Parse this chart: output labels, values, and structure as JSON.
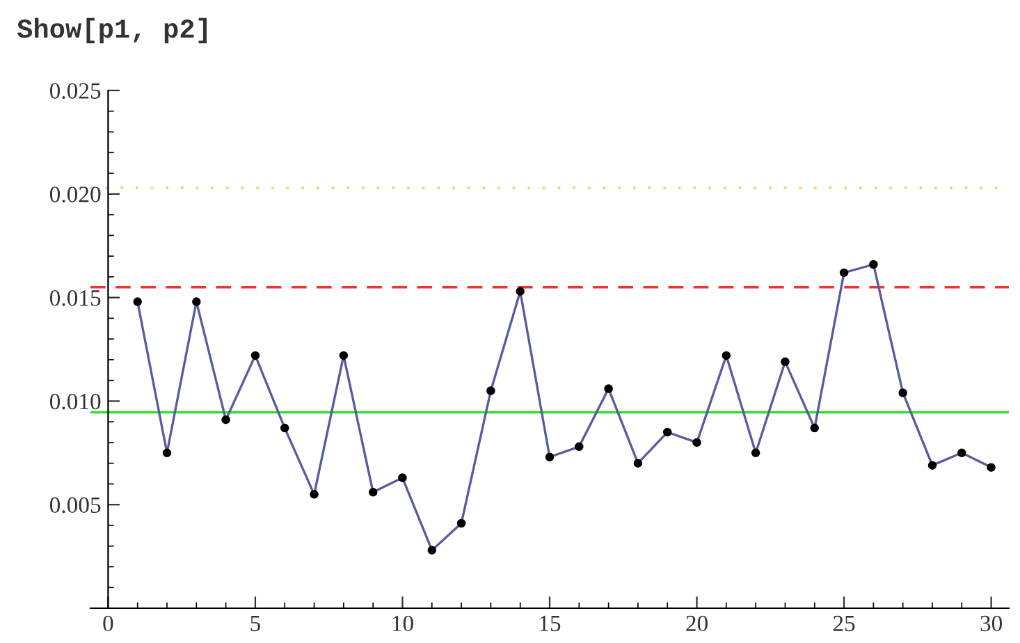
{
  "chart_data": {
    "type": "line",
    "title": "Show[p1, p2]",
    "x": [
      1,
      2,
      3,
      4,
      5,
      6,
      7,
      8,
      9,
      10,
      11,
      12,
      13,
      14,
      15,
      16,
      17,
      18,
      19,
      20,
      21,
      22,
      23,
      24,
      25,
      26,
      27,
      28,
      29,
      30
    ],
    "series": [
      {
        "color": "#5a5a9e",
        "values": [
          0.0148,
          0.0075,
          0.0148,
          0.0091,
          0.0122,
          0.0087,
          0.0055,
          0.0122,
          0.0056,
          0.0063,
          0.0028,
          0.0041,
          0.0105,
          0.0153,
          0.0073,
          0.0078,
          0.0106,
          0.007,
          0.0085,
          0.008,
          0.0122,
          0.0075,
          0.0119,
          0.0087,
          0.0162,
          0.0166,
          0.0104,
          0.0069,
          0.0075,
          0.0068
        ]
      }
    ],
    "marker": "circle",
    "xlim": [
      -0.6,
      30.6
    ],
    "ylim": [
      0,
      0.025
    ],
    "xticks": [
      0,
      5,
      10,
      15,
      20,
      25,
      30
    ],
    "yticks": [
      {
        "value": 0.005,
        "label": "0.005"
      },
      {
        "value": 0.01,
        "label": "0.010"
      },
      {
        "value": 0.015,
        "label": "0.015"
      },
      {
        "value": 0.02,
        "label": "0.020"
      },
      {
        "value": 0.025,
        "label": "0.025"
      }
    ],
    "ref_lines": [
      {
        "axis": "y",
        "value": 0.00946,
        "color": "#33dd33",
        "line_style": "solid"
      },
      {
        "axis": "y",
        "value": 0.0155,
        "color": "#ee3333",
        "line_style": "dashed"
      },
      {
        "axis": "y",
        "value": 0.0203,
        "color": "#ffc880",
        "line_style": "dotted"
      }
    ],
    "grid": false,
    "legend": false
  }
}
